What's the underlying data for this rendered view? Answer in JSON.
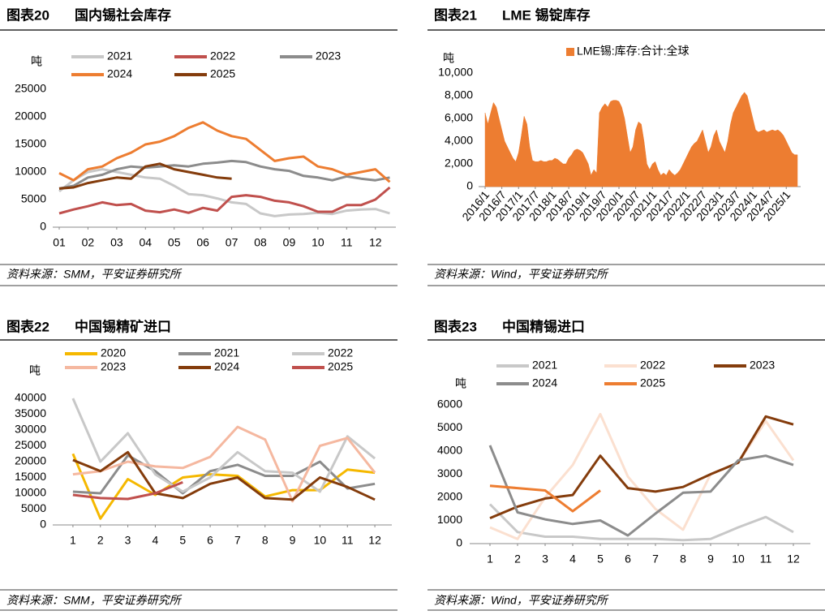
{
  "chart_data": [
    {
      "type": "line",
      "label": "图表20",
      "title": "国内锡社会库存",
      "y_label": "吨",
      "source": "资料来源：SMM，平安证券研究所",
      "x": [
        1,
        1.5,
        2,
        2.5,
        3,
        3.5,
        4,
        4.5,
        5,
        5.5,
        6,
        6.5,
        7,
        7.5,
        8,
        8.5,
        9,
        9.5,
        10,
        10.5,
        11,
        11.5,
        12,
        12.5
      ],
      "xlim": [
        1,
        12.6
      ],
      "xticks": [
        {
          "value": 1,
          "label": "01"
        },
        {
          "value": 2,
          "label": "02"
        },
        {
          "value": 3,
          "label": "03"
        },
        {
          "value": 4,
          "label": "04"
        },
        {
          "value": 5,
          "label": "05"
        },
        {
          "value": 6,
          "label": "06"
        },
        {
          "value": 7,
          "label": "07"
        },
        {
          "value": 8,
          "label": "08"
        },
        {
          "value": 9,
          "label": "09"
        },
        {
          "value": 10,
          "label": "10"
        },
        {
          "value": 11,
          "label": "11"
        },
        {
          "value": 12,
          "label": "12"
        }
      ],
      "ylim": [
        0,
        25000
      ],
      "yticks": [
        0,
        5000,
        10000,
        15000,
        20000,
        25000
      ],
      "series": [
        {
          "name": "2021",
          "color": "#c8c8c8",
          "values": [
            6500,
            8500,
            10000,
            10500,
            10000,
            9500,
            9000,
            8800,
            7500,
            6000,
            5800,
            5200,
            4500,
            4200,
            2500,
            2000,
            2300,
            2400,
            2600,
            2400,
            3000,
            3200,
            3300,
            2500
          ]
        },
        {
          "name": "2022",
          "color": "#c0504d",
          "values": [
            2500,
            3200,
            3800,
            4500,
            4000,
            4200,
            3000,
            2700,
            3200,
            2600,
            3500,
            3000,
            5500,
            5800,
            5500,
            4800,
            4500,
            3800,
            2800,
            2800,
            4000,
            4000,
            5000,
            7200
          ]
        },
        {
          "name": "2023",
          "color": "#8c8c8c",
          "values": [
            7000,
            7500,
            9000,
            9500,
            10500,
            11000,
            10800,
            11000,
            11200,
            11000,
            11500,
            11700,
            12000,
            11800,
            11000,
            10500,
            10200,
            9300,
            9000,
            8500,
            9200,
            8800,
            8500,
            9000
          ]
        },
        {
          "name": "2024",
          "color": "#ed7d31",
          "values": [
            9800,
            8500,
            10500,
            11000,
            12500,
            13500,
            15000,
            15500,
            16500,
            18000,
            19000,
            17500,
            16500,
            16000,
            14000,
            12000,
            12500,
            12800,
            11000,
            10500,
            9500,
            10000,
            10500,
            8200
          ]
        },
        {
          "name": "2025",
          "color": "#843c0c",
          "values": [
            7000,
            7200,
            8000,
            8500,
            9000,
            8800,
            11000,
            11500,
            10500,
            10000,
            9500,
            9000,
            8800,
            null,
            null,
            null,
            null,
            null,
            null,
            null,
            null,
            null,
            null,
            null
          ]
        }
      ]
    },
    {
      "type": "area",
      "label": "图表21",
      "title": "LME 锡锭库存",
      "y_label": "吨",
      "source": "资料来源：Wind，平安证券研究所",
      "categories": [
        "2016/1",
        null,
        null,
        null,
        null,
        null,
        "2016/7",
        null,
        null,
        null,
        null,
        null,
        "2017/1",
        null,
        null,
        null,
        null,
        null,
        "2017/7",
        null,
        null,
        null,
        null,
        null,
        "2018/1",
        null,
        null,
        null,
        null,
        null,
        "2018/7",
        null,
        null,
        null,
        null,
        null,
        "2019/1",
        null,
        null,
        null,
        null,
        null,
        "2019/7",
        null,
        null,
        null,
        null,
        null,
        "2020/1",
        null,
        null,
        null,
        null,
        null,
        "2020/7",
        null,
        null,
        null,
        null,
        null,
        "2021/1",
        null,
        null,
        null,
        null,
        null,
        "2021/7",
        null,
        null,
        null,
        null,
        null,
        "2022/1",
        null,
        null,
        null,
        null,
        null,
        "2022/7",
        null,
        null,
        null,
        null,
        null,
        "2023/1",
        null,
        null,
        null,
        null,
        null,
        "2023/7",
        null,
        null,
        null,
        null,
        null,
        "2024/1",
        null,
        null,
        null,
        null,
        null,
        "2024/7",
        null,
        null,
        null,
        null,
        null,
        "2025/1",
        null,
        null,
        null,
        null
      ],
      "ylim": [
        0,
        10000
      ],
      "yticks": [
        0,
        {
          "value": 2000,
          "label": "2,000"
        },
        {
          "value": 4000,
          "label": "4,000"
        },
        {
          "value": 6000,
          "label": "6,000"
        },
        {
          "value": 8000,
          "label": "8,000"
        },
        {
          "value": 10000,
          "label": "10,000"
        }
      ],
      "series": [
        {
          "name": "LME锡:库存:合计:全球",
          "color": "#ed7d31",
          "values": [
            6500,
            5500,
            6500,
            7400,
            7000,
            6000,
            5000,
            4000,
            3500,
            3000,
            2500,
            2200,
            3000,
            4500,
            6200,
            5500,
            3500,
            2300,
            2200,
            2200,
            2300,
            2200,
            2200,
            2300,
            2300,
            2500,
            2400,
            2200,
            2000,
            2000,
            2500,
            2800,
            3200,
            3300,
            3200,
            3000,
            2500,
            2000,
            1000,
            1500,
            1200,
            6500,
            7000,
            7300,
            7000,
            7500,
            7600,
            7600,
            7500,
            7000,
            6000,
            4500,
            3000,
            3500,
            5000,
            5700,
            5500,
            4000,
            2000,
            1500,
            2000,
            2200,
            1500,
            1000,
            1200,
            1000,
            1500,
            1200,
            1000,
            1200,
            1500,
            2000,
            2500,
            3000,
            3500,
            3800,
            4000,
            4500,
            5000,
            4000,
            3000,
            3500,
            4500,
            5000,
            4000,
            3500,
            3000,
            4000,
            5500,
            6500,
            7000,
            7500,
            8000,
            8300,
            8000,
            7000,
            6000,
            5000,
            4800,
            4900,
            5000,
            4800,
            4900,
            5000,
            4900,
            5000,
            4800,
            4500,
            4000,
            3500,
            3000,
            2800,
            2800
          ]
        }
      ]
    },
    {
      "type": "line",
      "label": "图表22",
      "title": "中国锡精矿进口",
      "y_label": "吨",
      "source": "资料来源：SMM，平安证券研究所",
      "x": [
        1,
        2,
        3,
        4,
        5,
        6,
        7,
        8,
        9,
        10,
        11,
        12
      ],
      "xlim": [
        0.5,
        12.5
      ],
      "xticks": [
        1,
        2,
        3,
        4,
        5,
        6,
        7,
        8,
        9,
        10,
        11,
        12
      ],
      "ylim": [
        0,
        40000
      ],
      "yticks": [
        0,
        5000,
        10000,
        15000,
        20000,
        25000,
        30000,
        35000,
        40000
      ],
      "series": [
        {
          "name": "2020",
          "color": "#f5b800",
          "values": [
            22500,
            2000,
            14500,
            9500,
            15000,
            16000,
            15500,
            9000,
            11000,
            11000,
            17500,
            16500
          ]
        },
        {
          "name": "2021",
          "color": "#8c8c8c",
          "values": [
            10500,
            10000,
            22000,
            17000,
            10000,
            17000,
            19000,
            15500,
            15500,
            20000,
            11500,
            13000
          ]
        },
        {
          "name": "2022",
          "color": "#c8c8c8",
          "values": [
            40000,
            20000,
            29000,
            16000,
            10500,
            15000,
            23000,
            17000,
            16500,
            10500,
            28000,
            21000
          ]
        },
        {
          "name": "2023",
          "color": "#f5b8a0",
          "values": [
            16000,
            17000,
            20000,
            18500,
            18000,
            21500,
            31000,
            27000,
            7500,
            25000,
            27500,
            16500
          ]
        },
        {
          "name": "2024",
          "color": "#843c0c",
          "values": [
            20500,
            17000,
            23000,
            10000,
            8500,
            13000,
            15000,
            8500,
            8000,
            15000,
            12000,
            8000
          ]
        },
        {
          "name": "2025",
          "color": "#c0504d",
          "values": [
            9500,
            8500,
            8200,
            10000,
            13500,
            null,
            null,
            null,
            null,
            null,
            null,
            null
          ]
        }
      ]
    },
    {
      "type": "line",
      "label": "图表23",
      "title": "中国精锡进口",
      "y_label": "吨",
      "source": "资料来源：Wind，平安证券研究所",
      "x": [
        1,
        2,
        3,
        4,
        5,
        6,
        7,
        8,
        9,
        10,
        11,
        12
      ],
      "xlim": [
        0.5,
        12.5
      ],
      "xticks": [
        1,
        2,
        3,
        4,
        5,
        6,
        7,
        8,
        9,
        10,
        11,
        12
      ],
      "ylim": [
        0,
        6000
      ],
      "yticks": [
        0,
        1000,
        2000,
        3000,
        4000,
        5000,
        6000
      ],
      "series": [
        {
          "name": "2021",
          "color": "#c8c8c8",
          "values": [
            1700,
            500,
            300,
            300,
            200,
            200,
            200,
            150,
            200,
            700,
            1150,
            500
          ]
        },
        {
          "name": "2022",
          "color": "#fbe0d0",
          "values": [
            700,
            200,
            2000,
            3400,
            5600,
            2900,
            1500,
            600,
            3000,
            3500,
            5300,
            3600
          ]
        },
        {
          "name": "2023",
          "color": "#843c0c",
          "values": [
            1100,
            1600,
            1950,
            2100,
            3800,
            2400,
            2250,
            2450,
            3000,
            3500,
            5500,
            5150
          ]
        },
        {
          "name": "2024",
          "color": "#8c8c8c",
          "values": [
            4250,
            1350,
            1050,
            850,
            1000,
            350,
            1300,
            2200,
            2250,
            3600,
            3800,
            3400
          ]
        },
        {
          "name": "2025",
          "color": "#ed7d31",
          "values": [
            2500,
            2400,
            2300,
            1400,
            2300,
            null,
            null,
            null,
            null,
            null,
            null,
            null
          ]
        }
      ]
    }
  ]
}
